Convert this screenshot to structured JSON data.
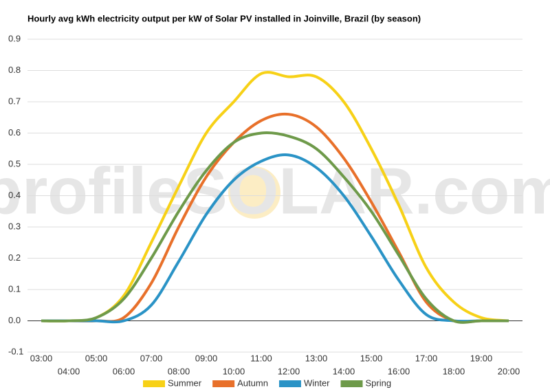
{
  "chart_data": {
    "type": "line",
    "title": "Hourly avg kWh electricity output per kW of Solar PV installed in Joinville, Brazil (by season)",
    "watermark": "profileSOLAR.com",
    "categories": [
      "03:00",
      "04:00",
      "05:00",
      "06:00",
      "07:00",
      "08:00",
      "09:00",
      "10:00",
      "11:00",
      "12:00",
      "13:00",
      "14:00",
      "15:00",
      "16:00",
      "17:00",
      "18:00",
      "19:00",
      "20:00"
    ],
    "series": [
      {
        "name": "Summer",
        "color": "#f7d117",
        "values": [
          0,
          0,
          0.01,
          0.08,
          0.25,
          0.43,
          0.6,
          0.7,
          0.79,
          0.78,
          0.78,
          0.7,
          0.55,
          0.37,
          0.17,
          0.06,
          0.01,
          0
        ]
      },
      {
        "name": "Autumn",
        "color": "#e8702a",
        "values": [
          0,
          0,
          0,
          0.01,
          0.12,
          0.3,
          0.46,
          0.57,
          0.64,
          0.66,
          0.62,
          0.52,
          0.38,
          0.22,
          0.06,
          0,
          0,
          0
        ]
      },
      {
        "name": "Winter",
        "color": "#2a93c6",
        "values": [
          0,
          0,
          0,
          0,
          0.05,
          0.19,
          0.34,
          0.45,
          0.51,
          0.53,
          0.49,
          0.4,
          0.27,
          0.13,
          0.02,
          0,
          0,
          0
        ]
      },
      {
        "name": "Spring",
        "color": "#6e9a4a",
        "values": [
          0,
          0,
          0.01,
          0.07,
          0.2,
          0.35,
          0.48,
          0.57,
          0.6,
          0.59,
          0.55,
          0.46,
          0.35,
          0.21,
          0.07,
          0,
          0,
          0
        ]
      }
    ],
    "ylim": [
      -0.1,
      0.9
    ],
    "yticks": [
      -0.1,
      {
        "value": 0,
        "label": "0.0"
      },
      0.1,
      0.2,
      0.3,
      0.4,
      0.5,
      0.6,
      0.7,
      0.8,
      0.9
    ],
    "grid": true
  }
}
